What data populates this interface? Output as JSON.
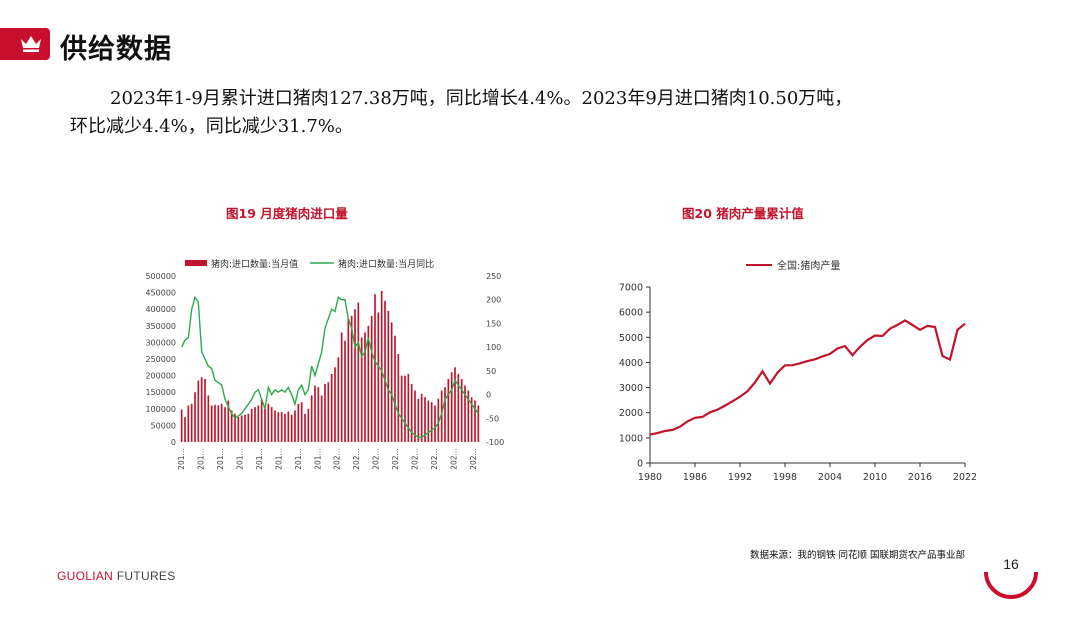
{
  "header": {
    "title": "供给数据",
    "icon": "crown-icon",
    "accent_color": "#c8102e"
  },
  "summary": {
    "line1": "2023年1-9月累计进口猪肉127.38万吨，同比增长4.4%。2023年9月进口猪肉10.50万吨，",
    "line2": "环比减少4.4%，同比减少31.7%。"
  },
  "figures": {
    "fig19_title": "图19 月度猪肉进口量",
    "fig20_title": "图20 猪肉产量累计值"
  },
  "chart_data": [
    {
      "type": "bar",
      "secondary_type": "line",
      "series": [
        {
          "name": "猪肉:进口数量:当月值",
          "axis": "left",
          "color": "#c0142b",
          "values": [
            98000,
            75000,
            110000,
            115000,
            150000,
            185000,
            195000,
            190000,
            140000,
            110000,
            112000,
            110000,
            115000,
            105000,
            125000,
            95000,
            85000,
            75000,
            80000,
            82000,
            85000,
            100000,
            105000,
            110000,
            130000,
            100000,
            115000,
            105000,
            95000,
            90000,
            90000,
            85000,
            92000,
            82000,
            95000,
            115000,
            120000,
            85000,
            100000,
            140000,
            170000,
            165000,
            140000,
            175000,
            180000,
            205000,
            225000,
            255000,
            330000,
            305000,
            370000,
            380000,
            400000,
            420000,
            315000,
            330000,
            350000,
            380000,
            445000,
            390000,
            455000,
            425000,
            395000,
            360000,
            320000,
            265000,
            200000,
            200000,
            205000,
            175000,
            155000,
            130000,
            145000,
            135000,
            125000,
            120000,
            110000,
            130000,
            155000,
            165000,
            190000,
            210000,
            225000,
            205000,
            190000,
            170000,
            155000,
            135000,
            125000,
            110000
          ],
          "display_labels": []
        },
        {
          "name": "猪肉:进口数量:当月同比",
          "axis": "right",
          "color": "#2eaa4a",
          "values": [
            100,
            115,
            120,
            180,
            205,
            195,
            90,
            75,
            60,
            55,
            30,
            25,
            20,
            -10,
            -25,
            -40,
            -50,
            -45,
            -40,
            -30,
            -20,
            -10,
            5,
            10,
            -10,
            -30,
            15,
            0,
            10,
            5,
            10,
            5,
            15,
            0,
            -20,
            10,
            20,
            0,
            10,
            60,
            40,
            65,
            90,
            140,
            160,
            180,
            175,
            205,
            200,
            200,
            160,
            140,
            100,
            110,
            80,
            90,
            120,
            90,
            70,
            60,
            50,
            30,
            10,
            0,
            -20,
            -40,
            -50,
            -60,
            -70,
            -80,
            -85,
            -90,
            -90,
            -85,
            -80,
            -75,
            -70,
            -60,
            -40,
            -10,
            0,
            10,
            30,
            20,
            10,
            0,
            -10,
            -20,
            -30,
            -40
          ],
          "display_labels": []
        }
      ],
      "y_left": {
        "range": [
          0,
          500000
        ],
        "ticks": [
          "500000",
          "450000",
          "400000",
          "350000",
          "300000",
          "250000",
          "200000",
          "150000",
          "100000",
          "50000",
          "0"
        ]
      },
      "y_right": {
        "range": [
          -100,
          250
        ],
        "ticks": [
          "250",
          "200",
          "150",
          "100",
          "50",
          "0",
          "-50",
          "-100"
        ]
      },
      "x_tick_labels": [
        "201…",
        "201…",
        "201…",
        "201…",
        "201…",
        "201…",
        "201…",
        "201…",
        "202…",
        "202…",
        "202…",
        "202…",
        "202…",
        "202…",
        "202…",
        "202…"
      ],
      "legend_position": "top"
    },
    {
      "type": "line",
      "series": [
        {
          "name": "全国:猪肉产量",
          "color": "#c0142b",
          "x": [
            1980,
            1981,
            1982,
            1983,
            1984,
            1985,
            1986,
            1987,
            1988,
            1989,
            1990,
            1991,
            1992,
            1993,
            1994,
            1995,
            1996,
            1997,
            1998,
            1999,
            2000,
            2001,
            2002,
            2003,
            2004,
            2005,
            2006,
            2007,
            2008,
            2009,
            2010,
            2011,
            2012,
            2013,
            2014,
            2015,
            2016,
            2017,
            2018,
            2019,
            2020,
            2021,
            2022
          ],
          "y": [
            1134,
            1188,
            1272,
            1316,
            1445,
            1655,
            1796,
            1835,
            2018,
            2123,
            2281,
            2452,
            2635,
            2854,
            3205,
            3648,
            3158,
            3596,
            3884,
            3891,
            3966,
            4052,
            4123,
            4239,
            4341,
            4555,
            4650,
            4288,
            4621,
            4891,
            5071,
            5053,
            5343,
            5493,
            5671,
            5487,
            5299,
            5452,
            5404,
            4255,
            4113,
            5296,
            5541
          ]
        }
      ],
      "xlim": [
        1980,
        2022
      ],
      "ylim": [
        0,
        7000
      ],
      "x_ticks": [
        "1980",
        "1986",
        "1992",
        "1998",
        "2004",
        "2010",
        "2016",
        "2022"
      ],
      "y_ticks": [
        "7000",
        "6000",
        "5000",
        "4000",
        "3000",
        "2000",
        "1000",
        "0"
      ],
      "legend_position": "top"
    }
  ],
  "footer": {
    "source": "数据来源：我的钢铁  同花顺  国联期货农产品事业部",
    "brand_part1": "GUOLIAN",
    "brand_part2": " FUTURES",
    "page_number": "16"
  }
}
